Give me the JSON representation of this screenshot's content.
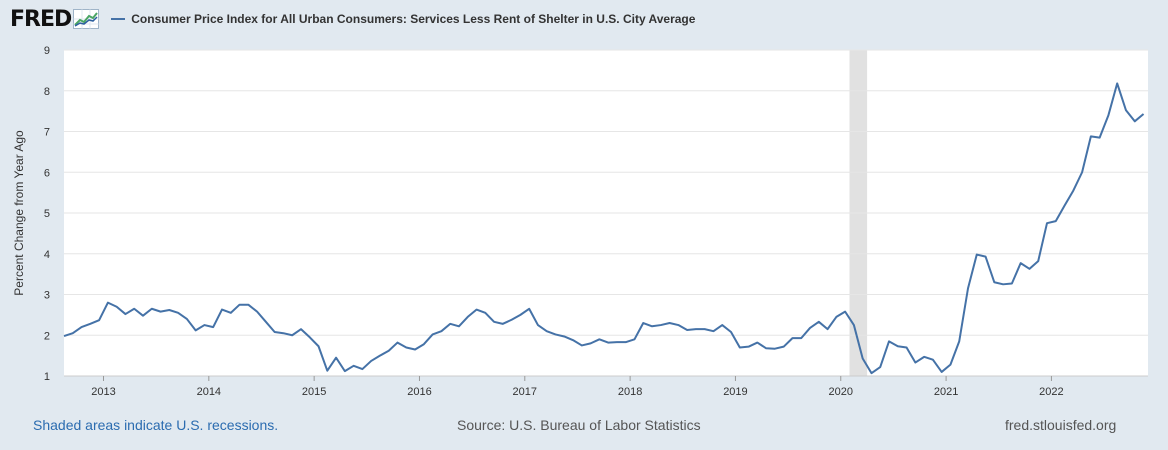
{
  "brand": {
    "logo_text": "FRED",
    "logo_icon": "chart-line-icon"
  },
  "colors": {
    "background": "#e1e9f0",
    "series": "#4572a7",
    "recession": "#e1e1e1",
    "grid": "#e6e6e6"
  },
  "footer": {
    "recession_note": "Shaded areas indicate U.S. recessions.",
    "source": "Source: U.S. Bureau of Labor Statistics",
    "site": "fred.stlouisfed.org"
  },
  "chart_data": {
    "type": "line",
    "title": "Consumer Price Index for All Urban Consumers: Services Less Rent of Shelter in U.S. City Average",
    "xlabel": "",
    "ylabel": "Percent Change from Year Ago",
    "ylim": [
      1,
      9
    ],
    "xlim": [
      2012.625,
      2022.917
    ],
    "yticks": [
      1,
      2,
      3,
      4,
      5,
      6,
      7,
      8,
      9
    ],
    "xticks": [
      {
        "label": "2013",
        "value": 2013
      },
      {
        "label": "2014",
        "value": 2014
      },
      {
        "label": "2015",
        "value": 2015
      },
      {
        "label": "2016",
        "value": 2016
      },
      {
        "label": "2017",
        "value": 2017
      },
      {
        "label": "2018",
        "value": 2018
      },
      {
        "label": "2019",
        "value": 2019
      },
      {
        "label": "2020",
        "value": 2020
      },
      {
        "label": "2021",
        "value": 2021
      },
      {
        "label": "2022",
        "value": 2022
      }
    ],
    "grid": true,
    "recessions": [
      {
        "start": 2020.083,
        "end": 2020.25
      }
    ],
    "series": [
      {
        "name": "Consumer Price Index for All Urban Consumers: Services Less Rent of Shelter in U.S. City Average",
        "x_start": 2012.625,
        "x_step": 0.08333,
        "values": [
          1.98,
          2.05,
          2.2,
          2.28,
          2.37,
          2.8,
          2.7,
          2.52,
          2.65,
          2.48,
          2.65,
          2.58,
          2.62,
          2.55,
          2.4,
          2.12,
          2.25,
          2.2,
          2.63,
          2.55,
          2.75,
          2.75,
          2.58,
          2.33,
          2.08,
          2.05,
          2.0,
          2.15,
          1.95,
          1.73,
          1.13,
          1.45,
          1.12,
          1.25,
          1.17,
          1.37,
          1.5,
          1.62,
          1.82,
          1.7,
          1.65,
          1.78,
          2.02,
          2.1,
          2.28,
          2.22,
          2.45,
          2.63,
          2.55,
          2.33,
          2.28,
          2.38,
          2.5,
          2.65,
          2.25,
          2.1,
          2.02,
          1.97,
          1.88,
          1.75,
          1.8,
          1.9,
          1.82,
          1.83,
          1.83,
          1.9,
          2.3,
          2.22,
          2.25,
          2.3,
          2.25,
          2.13,
          2.15,
          2.15,
          2.1,
          2.25,
          2.08,
          1.7,
          1.72,
          1.82,
          1.68,
          1.67,
          1.72,
          1.93,
          1.93,
          2.18,
          2.33,
          2.15,
          2.45,
          2.58,
          2.25,
          1.43,
          1.07,
          1.22,
          1.85,
          1.73,
          1.7,
          1.33,
          1.47,
          1.4,
          1.1,
          1.28,
          1.85,
          3.15,
          3.98,
          3.93,
          3.3,
          3.25,
          3.27,
          3.77,
          3.63,
          3.82,
          4.75,
          4.8,
          5.18,
          5.55,
          6.0,
          6.88,
          6.85,
          7.4,
          8.18,
          7.52,
          7.25,
          7.43
        ]
      }
    ]
  }
}
